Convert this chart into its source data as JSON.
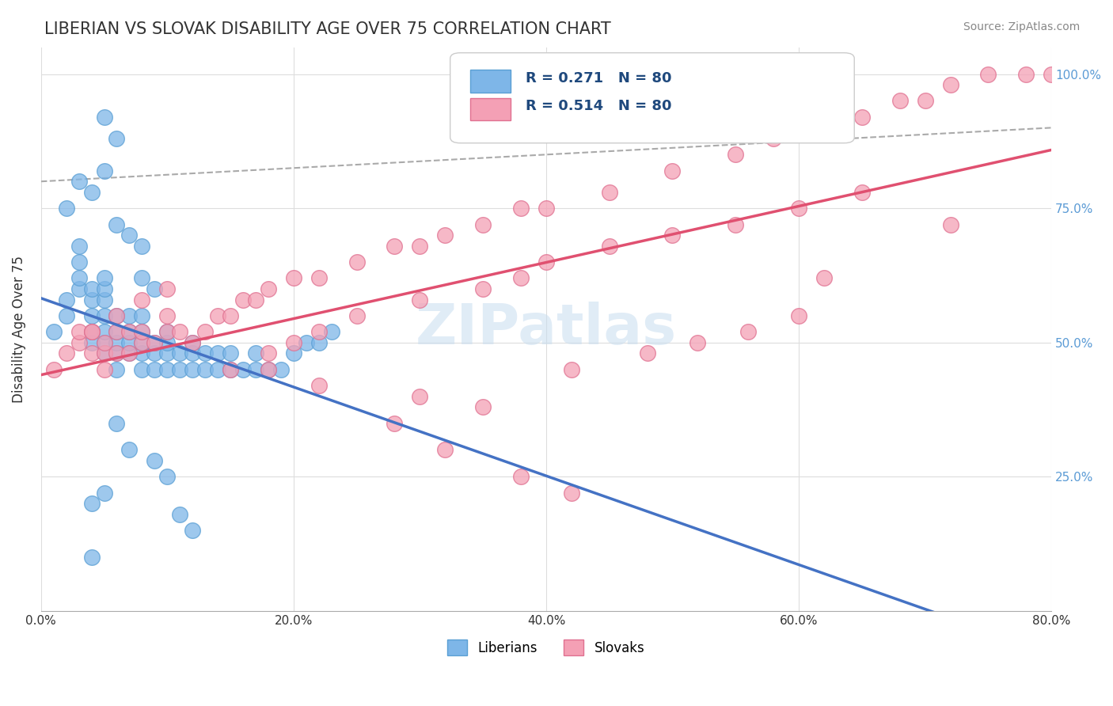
{
  "title": "LIBERIAN VS SLOVAK DISABILITY AGE OVER 75 CORRELATION CHART",
  "source_text": "Source: ZipAtlas.com",
  "xlabel": "",
  "ylabel": "Disability Age Over 75",
  "R_liberian": 0.271,
  "R_slovak": 0.514,
  "N_liberian": 80,
  "N_slovak": 80,
  "xlim": [
    0.0,
    0.8
  ],
  "ylim": [
    0.0,
    1.05
  ],
  "xticks": [
    0.0,
    0.2,
    0.4,
    0.6,
    0.8
  ],
  "xticklabels": [
    "0.0%",
    "20.0%",
    "40.0%",
    "60.0%",
    "80.0%"
  ],
  "yticks_right": [
    0.25,
    0.5,
    0.75,
    1.0
  ],
  "yticklabels_right": [
    "25.0%",
    "50.0%",
    "75.0%",
    "100.0%"
  ],
  "color_liberian": "#7eb6e8",
  "color_liberian_edge": "#5a9fd4",
  "color_slovak": "#f4a0b5",
  "color_slovak_edge": "#e07090",
  "color_trend_liberian": "#4472c4",
  "color_trend_slovak": "#e05070",
  "color_trend_liberian_dashed": "#aaaaaa",
  "background_color": "#ffffff",
  "grid_color": "#dddddd",
  "watermark_text": "ZIPatlas",
  "liberian_x": [
    0.01,
    0.02,
    0.02,
    0.03,
    0.03,
    0.03,
    0.03,
    0.04,
    0.04,
    0.04,
    0.04,
    0.04,
    0.05,
    0.05,
    0.05,
    0.05,
    0.05,
    0.05,
    0.05,
    0.06,
    0.06,
    0.06,
    0.06,
    0.06,
    0.07,
    0.07,
    0.07,
    0.07,
    0.08,
    0.08,
    0.08,
    0.08,
    0.08,
    0.09,
    0.09,
    0.09,
    0.1,
    0.1,
    0.1,
    0.1,
    0.11,
    0.11,
    0.12,
    0.12,
    0.12,
    0.13,
    0.13,
    0.14,
    0.14,
    0.15,
    0.15,
    0.16,
    0.17,
    0.17,
    0.18,
    0.19,
    0.2,
    0.21,
    0.22,
    0.23,
    0.02,
    0.03,
    0.04,
    0.05,
    0.06,
    0.07,
    0.08,
    0.06,
    0.07,
    0.04,
    0.09,
    0.05,
    0.1,
    0.11,
    0.12,
    0.06,
    0.05,
    0.08,
    0.09,
    0.04
  ],
  "liberian_y": [
    0.52,
    0.55,
    0.58,
    0.6,
    0.62,
    0.65,
    0.68,
    0.5,
    0.52,
    0.55,
    0.58,
    0.6,
    0.48,
    0.5,
    0.52,
    0.55,
    0.58,
    0.6,
    0.62,
    0.45,
    0.48,
    0.5,
    0.52,
    0.55,
    0.48,
    0.5,
    0.52,
    0.55,
    0.45,
    0.48,
    0.5,
    0.52,
    0.55,
    0.45,
    0.48,
    0.5,
    0.45,
    0.48,
    0.5,
    0.52,
    0.45,
    0.48,
    0.45,
    0.48,
    0.5,
    0.45,
    0.48,
    0.45,
    0.48,
    0.45,
    0.48,
    0.45,
    0.45,
    0.48,
    0.45,
    0.45,
    0.48,
    0.5,
    0.5,
    0.52,
    0.75,
    0.8,
    0.78,
    0.82,
    0.72,
    0.7,
    0.68,
    0.35,
    0.3,
    0.2,
    0.28,
    0.22,
    0.25,
    0.18,
    0.15,
    0.88,
    0.92,
    0.62,
    0.6,
    0.1
  ],
  "slovak_x": [
    0.01,
    0.02,
    0.03,
    0.03,
    0.04,
    0.04,
    0.05,
    0.05,
    0.05,
    0.06,
    0.06,
    0.07,
    0.07,
    0.08,
    0.08,
    0.09,
    0.1,
    0.1,
    0.11,
    0.12,
    0.13,
    0.14,
    0.15,
    0.16,
    0.17,
    0.18,
    0.2,
    0.22,
    0.25,
    0.28,
    0.3,
    0.32,
    0.35,
    0.38,
    0.4,
    0.45,
    0.5,
    0.55,
    0.58,
    0.62,
    0.65,
    0.68,
    0.7,
    0.72,
    0.75,
    0.78,
    0.8,
    0.65,
    0.6,
    0.55,
    0.5,
    0.45,
    0.4,
    0.38,
    0.35,
    0.3,
    0.25,
    0.22,
    0.2,
    0.18,
    0.15,
    0.3,
    0.35,
    0.28,
    0.32,
    0.42,
    0.48,
    0.52,
    0.56,
    0.6,
    0.38,
    0.42,
    0.18,
    0.22,
    0.62,
    0.72,
    0.04,
    0.06,
    0.08,
    0.1
  ],
  "slovak_y": [
    0.45,
    0.48,
    0.5,
    0.52,
    0.48,
    0.52,
    0.45,
    0.48,
    0.5,
    0.48,
    0.52,
    0.48,
    0.52,
    0.5,
    0.52,
    0.5,
    0.52,
    0.55,
    0.52,
    0.5,
    0.52,
    0.55,
    0.55,
    0.58,
    0.58,
    0.6,
    0.62,
    0.62,
    0.65,
    0.68,
    0.68,
    0.7,
    0.72,
    0.75,
    0.75,
    0.78,
    0.82,
    0.85,
    0.88,
    0.9,
    0.92,
    0.95,
    0.95,
    0.98,
    1.0,
    1.0,
    1.0,
    0.78,
    0.75,
    0.72,
    0.7,
    0.68,
    0.65,
    0.62,
    0.6,
    0.58,
    0.55,
    0.52,
    0.5,
    0.48,
    0.45,
    0.4,
    0.38,
    0.35,
    0.3,
    0.45,
    0.48,
    0.5,
    0.52,
    0.55,
    0.25,
    0.22,
    0.45,
    0.42,
    0.62,
    0.72,
    0.52,
    0.55,
    0.58,
    0.6
  ]
}
